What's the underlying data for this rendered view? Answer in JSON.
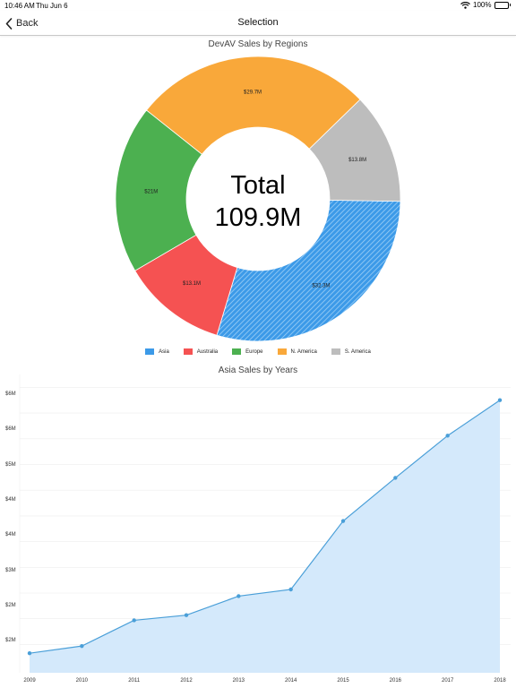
{
  "status_bar": {
    "time": "10:46 AM",
    "date": "Thu Jun 6",
    "battery": "100%",
    "battery_level": 1.0
  },
  "nav": {
    "back_label": "Back",
    "title": "Selection"
  },
  "donut": {
    "center_title": "Total",
    "center_value": "109.9M"
  },
  "line": {
    "y_ticks": [
      "$2M",
      "$2M",
      "$3M",
      "$4M",
      "$4M",
      "$5M",
      "$6M"
    ]
  },
  "chart_data": [
    {
      "type": "pie",
      "title": "DevAV Sales by Regions",
      "categories": [
        "Asia",
        "Australia",
        "Europe",
        "N. America",
        "S. America"
      ],
      "values": [
        32.3,
        13.1,
        21,
        29.7,
        13.8
      ],
      "labels": [
        "$32.3M",
        "$13.1M",
        "$21M",
        "$29.7M",
        "$13.8M"
      ],
      "colors": [
        "#3c9ae8",
        "#f55252",
        "#4cb050",
        "#f9a83a",
        "#bdbdbd"
      ],
      "selected": "Asia",
      "legend": "bottom"
    },
    {
      "type": "area",
      "title": "Asia Sales by Years",
      "x": [
        2009,
        2010,
        2011,
        2012,
        2013,
        2014,
        2015,
        2016,
        2017,
        2018
      ],
      "values": [
        1.58,
        1.72,
        2.22,
        2.32,
        2.69,
        2.82,
        4.15,
        4.99,
        5.81,
        6.5
      ],
      "ylim": [
        1.2,
        7.0
      ],
      "y_ticks": [
        1.75,
        2.25,
        2.75,
        3.25,
        3.75,
        4.25,
        4.75,
        5.25,
        5.75,
        6.25,
        6.75
      ],
      "line_color": "#4a9fd8",
      "fill_color": "#d4e9fb",
      "grid": true
    }
  ]
}
